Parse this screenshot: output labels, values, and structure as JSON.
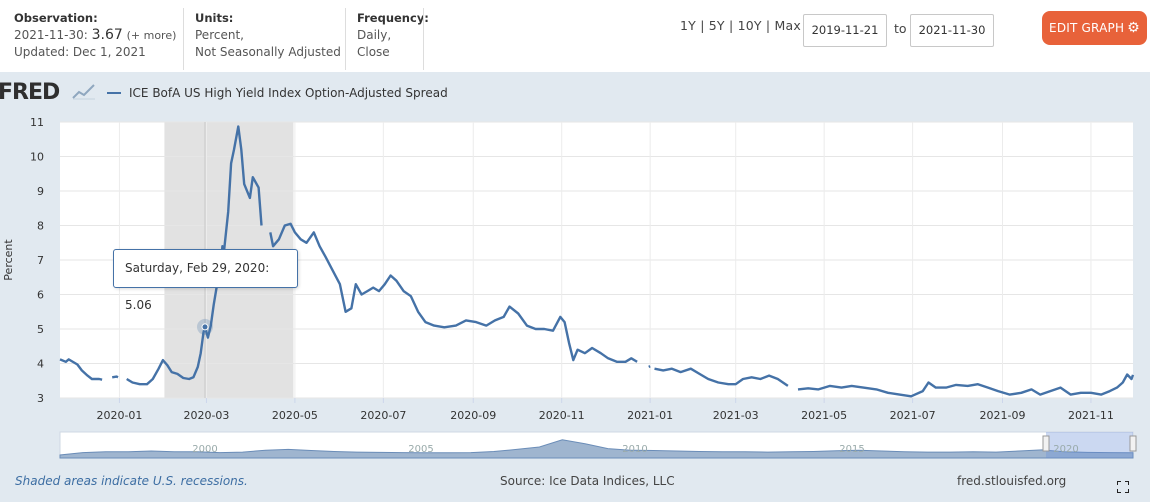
{
  "observation": {
    "heading": "Observation:",
    "date": "2021-11-30:",
    "value": "3.67",
    "more": "(+ more)",
    "updated": "Updated: Dec 1, 2021"
  },
  "units": {
    "heading": "Units:",
    "line1": "Percent,",
    "line2": "Not Seasonally Adjusted"
  },
  "frequency": {
    "heading": "Frequency:",
    "line1": "Daily,",
    "line2": "Close"
  },
  "ranges": [
    "1Y",
    "5Y",
    "10Y",
    "Max"
  ],
  "date_range": {
    "start": "2019-11-21",
    "to_label": "to",
    "end": "2021-11-30"
  },
  "edit_button": {
    "label": "EDIT GRAPH",
    "icon": "gear-icon"
  },
  "logo": {
    "text": "FRED"
  },
  "legend": {
    "label": "ICE BofA US High Yield Index Option-Adjusted Spread",
    "color": "#4572a7"
  },
  "tooltip": {
    "date": "Saturday, Feb 29, 2020:",
    "value": "5.06"
  },
  "footer": {
    "note": "Shaded areas indicate U.S. recessions.",
    "source": "Source: Ice Data Indices, LLC",
    "site": "fred.stlouisfed.org"
  },
  "chart_data": {
    "type": "line",
    "ylabel": "Percent",
    "ylim": [
      3,
      11
    ],
    "y_ticks": [
      3,
      4,
      5,
      6,
      7,
      8,
      9,
      10,
      11
    ],
    "x_range": [
      "2019-11-21",
      "2021-11-30"
    ],
    "x_ticks": [
      "2020-01",
      "2020-03",
      "2020-05",
      "2020-07",
      "2020-09",
      "2020-11",
      "2021-01",
      "2021-03",
      "2021-05",
      "2021-07",
      "2021-09",
      "2021-11"
    ],
    "grid": true,
    "recession": {
      "start": "2020-02-01",
      "end": "2020-04-30",
      "color": "#e2e2e2"
    },
    "highlight_point": {
      "x": "2020-02-29",
      "y": 5.06
    },
    "series": [
      {
        "name": "ICE BofA US High Yield Index Option-Adjusted Spread",
        "color": "#4572a7",
        "segments": [
          [
            [
              "2019-11-21",
              4.12
            ],
            [
              "2019-11-25",
              4.05
            ],
            [
              "2019-11-27",
              4.12
            ],
            [
              "2019-12-03",
              3.97
            ],
            [
              "2019-12-06",
              3.8
            ],
            [
              "2019-12-10",
              3.65
            ],
            [
              "2019-12-13",
              3.55
            ],
            [
              "2019-12-18",
              3.55
            ],
            [
              "2019-12-20",
              3.53
            ]
          ],
          [
            [
              "2019-12-27",
              3.6
            ],
            [
              "2019-12-30",
              3.62
            ],
            [
              "2019-12-31",
              3.6
            ]
          ],
          [
            [
              "2020-01-06",
              3.55
            ],
            [
              "2020-01-10",
              3.45
            ],
            [
              "2020-01-15",
              3.4
            ],
            [
              "2020-01-20",
              3.4
            ],
            [
              "2020-01-24",
              3.55
            ],
            [
              "2020-01-28",
              3.85
            ],
            [
              "2020-01-31",
              4.1
            ],
            [
              "2020-02-03",
              3.95
            ],
            [
              "2020-02-06",
              3.75
            ],
            [
              "2020-02-10",
              3.7
            ],
            [
              "2020-02-14",
              3.58
            ],
            [
              "2020-02-18",
              3.55
            ],
            [
              "2020-02-21",
              3.6
            ],
            [
              "2020-02-24",
              3.9
            ],
            [
              "2020-02-26",
              4.3
            ],
            [
              "2020-02-28",
              4.9
            ],
            [
              "2020-02-29",
              5.06
            ],
            [
              "2020-03-02",
              4.75
            ],
            [
              "2020-03-04",
              5.1
            ],
            [
              "2020-03-06",
              5.7
            ],
            [
              "2020-03-09",
              6.45
            ],
            [
              "2020-03-11",
              6.8
            ],
            [
              "2020-03-12",
              7.4
            ],
            [
              "2020-03-13",
              7.2
            ],
            [
              "2020-03-16",
              8.4
            ],
            [
              "2020-03-18",
              9.8
            ],
            [
              "2020-03-20",
              10.2
            ],
            [
              "2020-03-23",
              10.87
            ],
            [
              "2020-03-25",
              10.2
            ],
            [
              "2020-03-27",
              9.2
            ],
            [
              "2020-03-31",
              8.8
            ],
            [
              "2020-04-02",
              9.4
            ],
            [
              "2020-04-06",
              9.1
            ],
            [
              "2020-04-08",
              8.0
            ]
          ],
          [
            [
              "2020-04-14",
              7.8
            ],
            [
              "2020-04-16",
              7.4
            ],
            [
              "2020-04-20",
              7.6
            ],
            [
              "2020-04-24",
              8.0
            ],
            [
              "2020-04-28",
              8.05
            ],
            [
              "2020-05-01",
              7.8
            ],
            [
              "2020-05-05",
              7.6
            ],
            [
              "2020-05-09",
              7.5
            ],
            [
              "2020-05-14",
              7.8
            ],
            [
              "2020-05-18",
              7.4
            ],
            [
              "2020-05-22",
              7.1
            ],
            [
              "2020-05-27",
              6.7
            ],
            [
              "2020-06-01",
              6.3
            ],
            [
              "2020-06-05",
              5.5
            ],
            [
              "2020-06-09",
              5.6
            ],
            [
              "2020-06-12",
              6.3
            ],
            [
              "2020-06-16",
              6.0
            ],
            [
              "2020-06-20",
              6.1
            ],
            [
              "2020-06-24",
              6.2
            ],
            [
              "2020-06-28",
              6.1
            ],
            [
              "2020-07-02",
              6.3
            ],
            [
              "2020-07-06",
              6.55
            ],
            [
              "2020-07-10",
              6.4
            ],
            [
              "2020-07-15",
              6.1
            ],
            [
              "2020-07-20",
              5.95
            ],
            [
              "2020-07-25",
              5.5
            ],
            [
              "2020-07-30",
              5.2
            ],
            [
              "2020-08-05",
              5.1
            ],
            [
              "2020-08-12",
              5.05
            ],
            [
              "2020-08-20",
              5.1
            ],
            [
              "2020-08-27",
              5.25
            ],
            [
              "2020-09-03",
              5.2
            ],
            [
              "2020-09-10",
              5.1
            ],
            [
              "2020-09-16",
              5.25
            ],
            [
              "2020-09-22",
              5.35
            ],
            [
              "2020-09-26",
              5.65
            ],
            [
              "2020-10-02",
              5.45
            ],
            [
              "2020-10-08",
              5.1
            ],
            [
              "2020-10-14",
              5.0
            ],
            [
              "2020-10-20",
              5.0
            ],
            [
              "2020-10-26",
              4.95
            ],
            [
              "2020-10-31",
              5.35
            ],
            [
              "2020-11-03",
              5.2
            ],
            [
              "2020-11-06",
              4.6
            ],
            [
              "2020-11-09",
              4.1
            ],
            [
              "2020-11-12",
              4.4
            ],
            [
              "2020-11-17",
              4.3
            ],
            [
              "2020-11-22",
              4.45
            ],
            [
              "2020-11-28",
              4.3
            ],
            [
              "2020-12-03",
              4.15
            ],
            [
              "2020-12-09",
              4.05
            ],
            [
              "2020-12-15",
              4.05
            ],
            [
              "2020-12-19",
              4.15
            ],
            [
              "2020-12-23",
              4.05
            ]
          ],
          [
            [
              "2020-12-31",
              3.9
            ],
            [
              "2021-01-01",
              3.92
            ]
          ],
          [
            [
              "2021-01-04",
              3.85
            ],
            [
              "2021-01-10",
              3.8
            ],
            [
              "2021-01-16",
              3.85
            ],
            [
              "2021-01-22",
              3.75
            ],
            [
              "2021-01-29",
              3.85
            ],
            [
              "2021-02-04",
              3.7
            ],
            [
              "2021-02-10",
              3.55
            ],
            [
              "2021-02-17",
              3.45
            ],
            [
              "2021-02-24",
              3.4
            ],
            [
              "2021-03-01",
              3.4
            ],
            [
              "2021-03-06",
              3.55
            ],
            [
              "2021-03-12",
              3.6
            ],
            [
              "2021-03-18",
              3.55
            ],
            [
              "2021-03-24",
              3.65
            ],
            [
              "2021-03-30",
              3.55
            ],
            [
              "2021-04-06",
              3.35
            ]
          ],
          [
            [
              "2021-04-13",
              3.25
            ],
            [
              "2021-04-20",
              3.28
            ],
            [
              "2021-04-27",
              3.25
            ],
            [
              "2021-05-05",
              3.35
            ],
            [
              "2021-05-13",
              3.3
            ],
            [
              "2021-05-20",
              3.35
            ],
            [
              "2021-05-28",
              3.3
            ],
            [
              "2021-06-06",
              3.25
            ],
            [
              "2021-06-14",
              3.15
            ],
            [
              "2021-06-22",
              3.1
            ],
            [
              "2021-06-30",
              3.05
            ],
            [
              "2021-07-08",
              3.2
            ],
            [
              "2021-07-12",
              3.45
            ],
            [
              "2021-07-17",
              3.3
            ],
            [
              "2021-07-24",
              3.3
            ],
            [
              "2021-07-31",
              3.38
            ],
            [
              "2021-08-08",
              3.35
            ],
            [
              "2021-08-15",
              3.4
            ],
            [
              "2021-08-22",
              3.3
            ],
            [
              "2021-08-29",
              3.2
            ],
            [
              "2021-09-06",
              3.1
            ],
            [
              "2021-09-14",
              3.15
            ],
            [
              "2021-09-21",
              3.25
            ],
            [
              "2021-09-27",
              3.1
            ],
            [
              "2021-10-04",
              3.2
            ],
            [
              "2021-10-11",
              3.3
            ],
            [
              "2021-10-18",
              3.1
            ],
            [
              "2021-10-25",
              3.15
            ],
            [
              "2021-11-01",
              3.15
            ],
            [
              "2021-11-08",
              3.1
            ],
            [
              "2021-11-14",
              3.2
            ],
            [
              "2021-11-19",
              3.3
            ],
            [
              "2021-11-23",
              3.45
            ],
            [
              "2021-11-26",
              3.68
            ],
            [
              "2021-11-29",
              3.55
            ],
            [
              "2021-11-30",
              3.67
            ]
          ]
        ]
      }
    ],
    "navigator": {
      "labels": [
        "2000",
        "2005",
        "2010",
        "2015",
        "2020"
      ]
    }
  }
}
